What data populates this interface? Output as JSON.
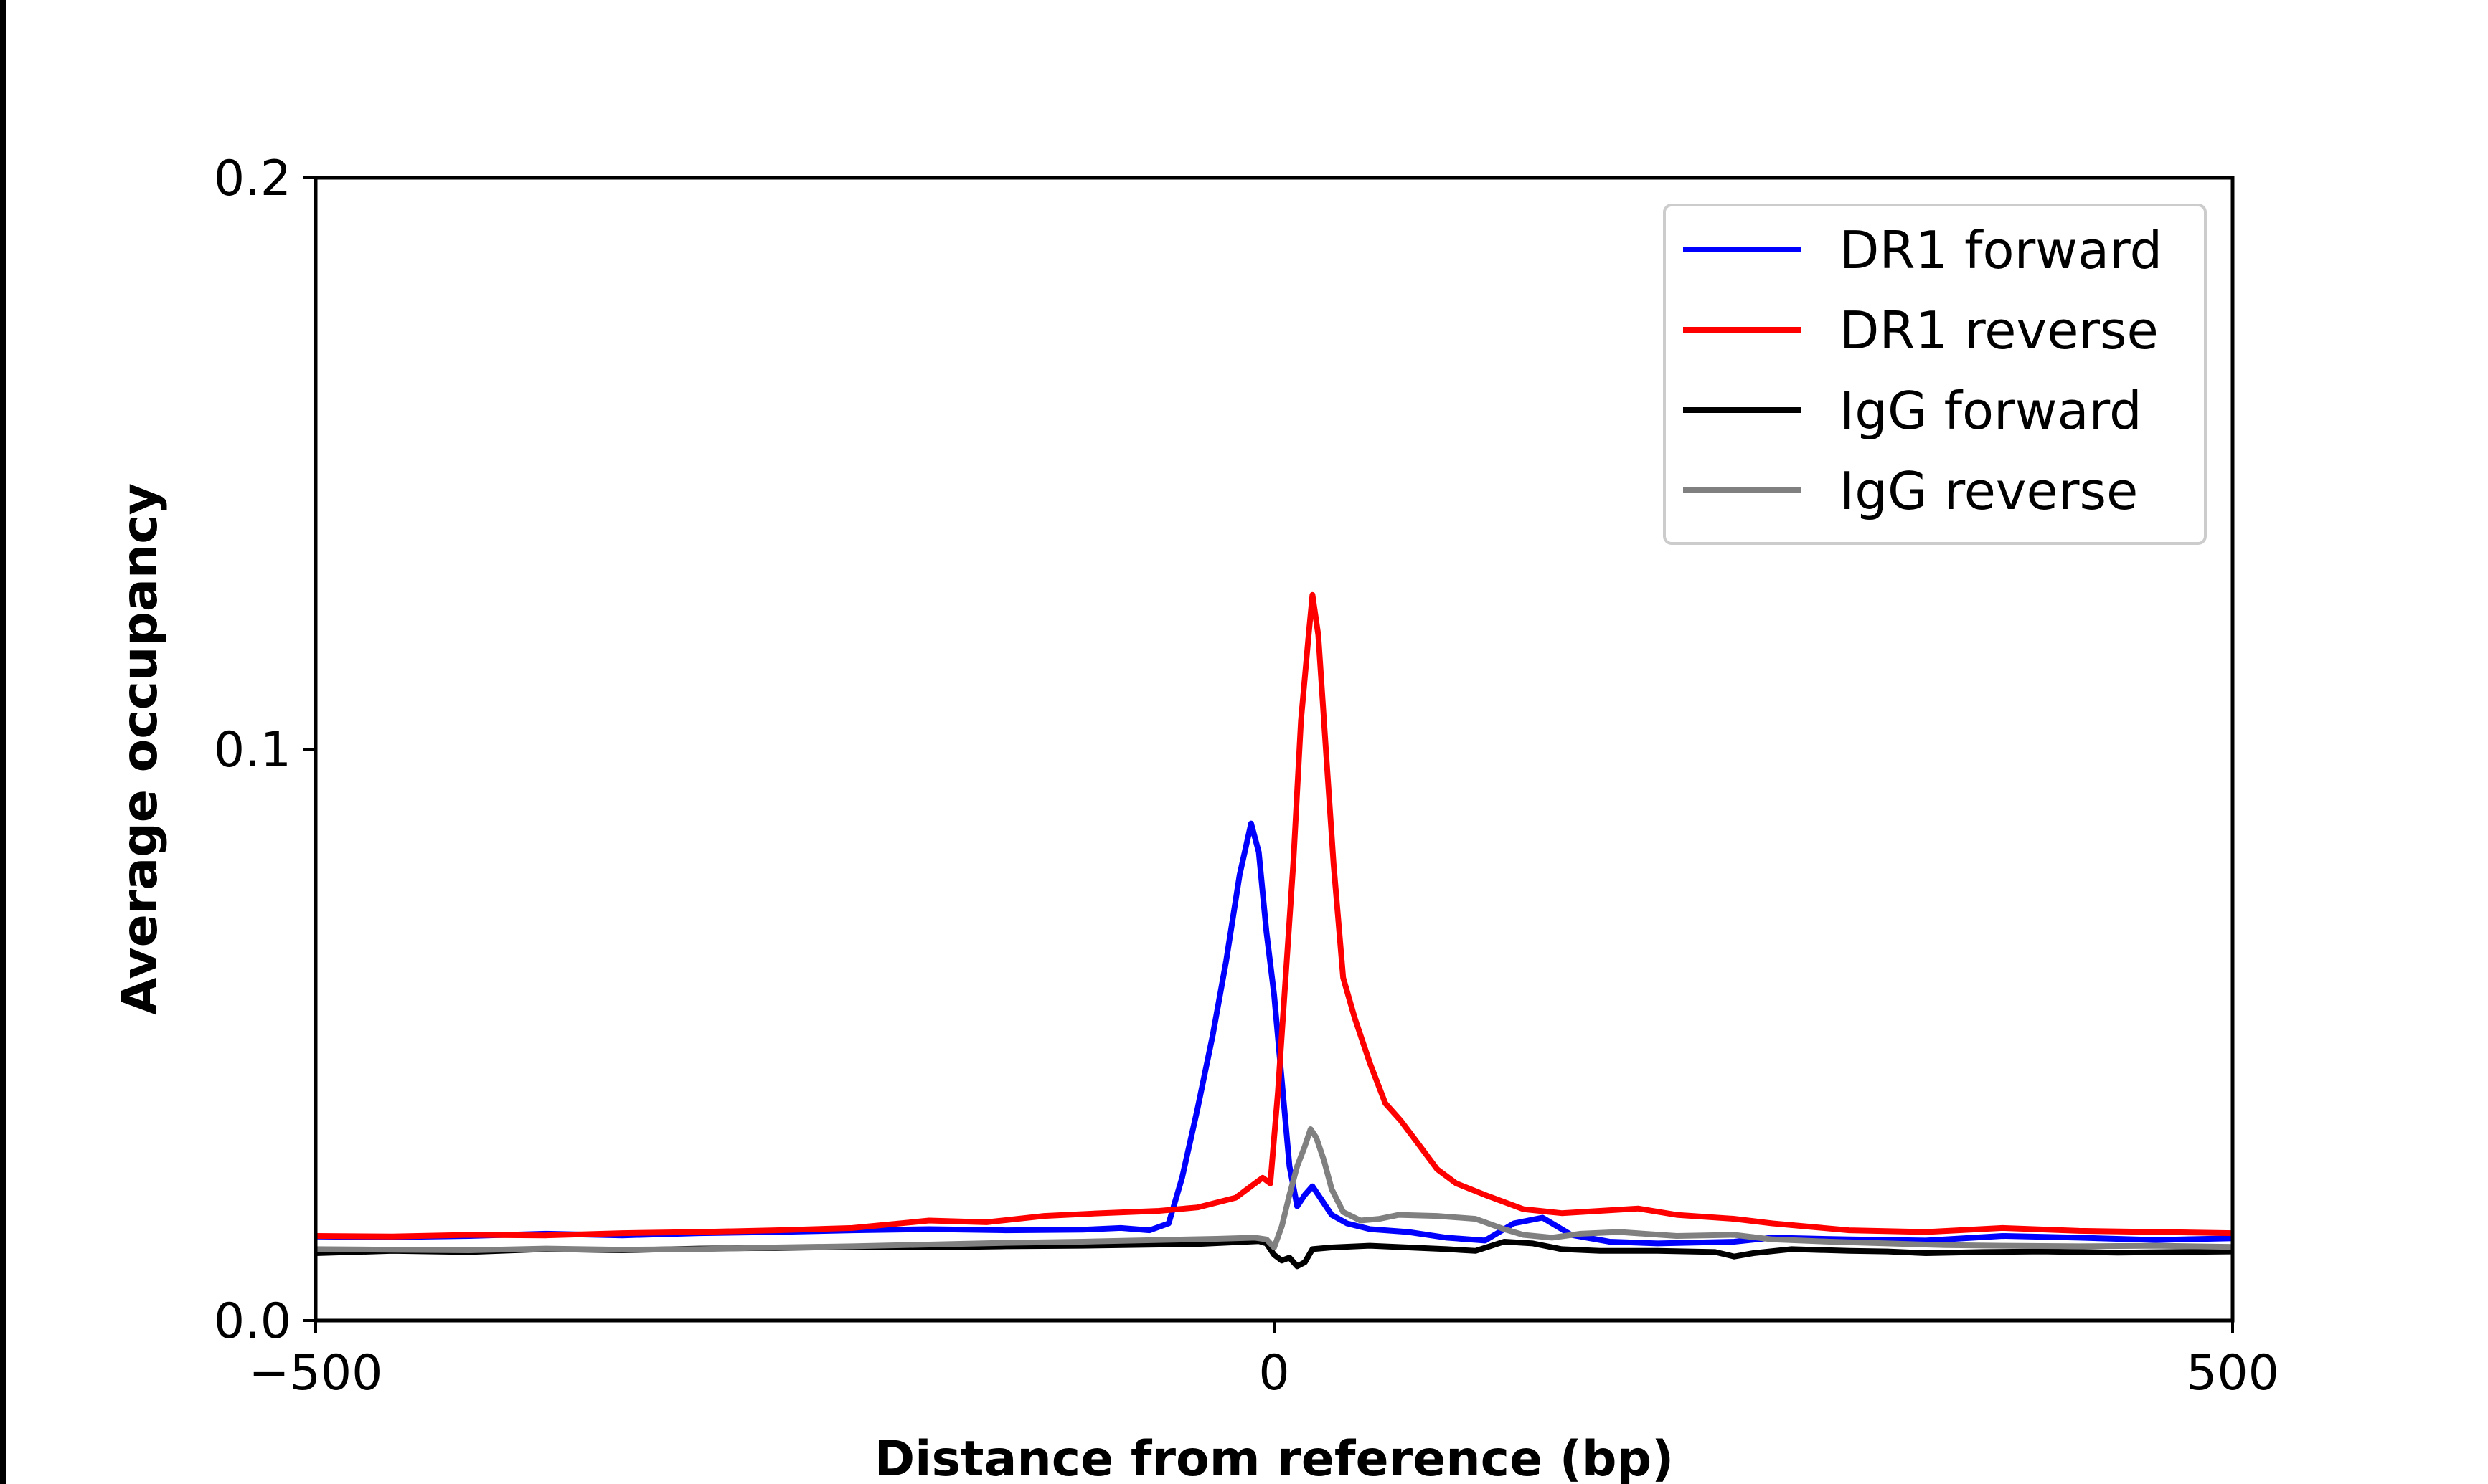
{
  "chart_data": {
    "type": "line",
    "title": "",
    "xlabel": "Distance from reference (bp)",
    "ylabel": "Average occupancy",
    "xlim": [
      -500,
      500
    ],
    "ylim": [
      0.0,
      0.2
    ],
    "grid": false,
    "legend_position": "top-right",
    "x_ticks": [
      {
        "value": -500,
        "label": "−500"
      },
      {
        "value": 0,
        "label": "0"
      },
      {
        "value": 500,
        "label": "500"
      }
    ],
    "y_ticks": [
      {
        "value": 0.0,
        "label": "0.0"
      },
      {
        "value": 0.1,
        "label": "0.1"
      },
      {
        "value": 0.2,
        "label": "0.2"
      }
    ],
    "series": [
      {
        "name": "DR1 forward",
        "color": "#0000ff",
        "points": [
          [
            -500,
            0.0147
          ],
          [
            -460,
            0.0146
          ],
          [
            -420,
            0.0148
          ],
          [
            -380,
            0.0152
          ],
          [
            -340,
            0.0149
          ],
          [
            -300,
            0.0153
          ],
          [
            -260,
            0.0155
          ],
          [
            -220,
            0.0158
          ],
          [
            -180,
            0.016
          ],
          [
            -140,
            0.0158
          ],
          [
            -100,
            0.0159
          ],
          [
            -80,
            0.0162
          ],
          [
            -65,
            0.0158
          ],
          [
            -55,
            0.017
          ],
          [
            -48,
            0.025
          ],
          [
            -40,
            0.037
          ],
          [
            -32,
            0.05
          ],
          [
            -25,
            0.063
          ],
          [
            -18,
            0.078
          ],
          [
            -12,
            0.087
          ],
          [
            -8,
            0.082
          ],
          [
            -4,
            0.068
          ],
          [
            0,
            0.057
          ],
          [
            4,
            0.042
          ],
          [
            8,
            0.027
          ],
          [
            12,
            0.02
          ],
          [
            16,
            0.022
          ],
          [
            20,
            0.0235
          ],
          [
            25,
            0.021
          ],
          [
            30,
            0.0185
          ],
          [
            38,
            0.017
          ],
          [
            50,
            0.016
          ],
          [
            70,
            0.0155
          ],
          [
            90,
            0.0145
          ],
          [
            110,
            0.014
          ],
          [
            125,
            0.017
          ],
          [
            140,
            0.018
          ],
          [
            155,
            0.015
          ],
          [
            175,
            0.0138
          ],
          [
            200,
            0.0135
          ],
          [
            240,
            0.0138
          ],
          [
            260,
            0.0145
          ],
          [
            300,
            0.0142
          ],
          [
            340,
            0.014
          ],
          [
            380,
            0.0148
          ],
          [
            420,
            0.0145
          ],
          [
            460,
            0.0141
          ],
          [
            500,
            0.0144
          ]
        ]
      },
      {
        "name": "DR1 reverse",
        "color": "#ff0000",
        "points": [
          [
            -500,
            0.0148
          ],
          [
            -460,
            0.0147
          ],
          [
            -420,
            0.015
          ],
          [
            -380,
            0.0149
          ],
          [
            -340,
            0.0153
          ],
          [
            -300,
            0.0155
          ],
          [
            -260,
            0.0158
          ],
          [
            -220,
            0.0162
          ],
          [
            -180,
            0.0175
          ],
          [
            -150,
            0.0172
          ],
          [
            -120,
            0.0183
          ],
          [
            -90,
            0.0188
          ],
          [
            -60,
            0.0192
          ],
          [
            -40,
            0.0198
          ],
          [
            -20,
            0.0215
          ],
          [
            -12,
            0.0235
          ],
          [
            -6,
            0.025
          ],
          [
            -2,
            0.024
          ],
          [
            2,
            0.04
          ],
          [
            6,
            0.06
          ],
          [
            10,
            0.08
          ],
          [
            14,
            0.105
          ],
          [
            18,
            0.12
          ],
          [
            20,
            0.127
          ],
          [
            23,
            0.12
          ],
          [
            27,
            0.1
          ],
          [
            31,
            0.08
          ],
          [
            36,
            0.06
          ],
          [
            42,
            0.053
          ],
          [
            50,
            0.045
          ],
          [
            58,
            0.038
          ],
          [
            66,
            0.035
          ],
          [
            75,
            0.031
          ],
          [
            85,
            0.0265
          ],
          [
            95,
            0.024
          ],
          [
            110,
            0.022
          ],
          [
            130,
            0.0195
          ],
          [
            150,
            0.0188
          ],
          [
            170,
            0.0192
          ],
          [
            190,
            0.0196
          ],
          [
            210,
            0.0185
          ],
          [
            240,
            0.0178
          ],
          [
            260,
            0.017
          ],
          [
            300,
            0.0158
          ],
          [
            340,
            0.0155
          ],
          [
            380,
            0.0162
          ],
          [
            420,
            0.0157
          ],
          [
            460,
            0.0155
          ],
          [
            500,
            0.0153
          ]
        ]
      },
      {
        "name": "IgG forward",
        "color": "#000000",
        "points": [
          [
            -500,
            0.0118
          ],
          [
            -460,
            0.0122
          ],
          [
            -420,
            0.012
          ],
          [
            -380,
            0.0125
          ],
          [
            -340,
            0.0123
          ],
          [
            -300,
            0.0126
          ],
          [
            -260,
            0.0127
          ],
          [
            -220,
            0.0129
          ],
          [
            -180,
            0.0128
          ],
          [
            -140,
            0.013
          ],
          [
            -100,
            0.0131
          ],
          [
            -60,
            0.0133
          ],
          [
            -40,
            0.0134
          ],
          [
            -20,
            0.0137
          ],
          [
            -8,
            0.0139
          ],
          [
            -4,
            0.0135
          ],
          [
            0,
            0.0115
          ],
          [
            4,
            0.0105
          ],
          [
            8,
            0.011
          ],
          [
            12,
            0.0095
          ],
          [
            16,
            0.0102
          ],
          [
            20,
            0.0125
          ],
          [
            30,
            0.0128
          ],
          [
            50,
            0.0131
          ],
          [
            70,
            0.0128
          ],
          [
            90,
            0.0125
          ],
          [
            105,
            0.0122
          ],
          [
            120,
            0.0138
          ],
          [
            135,
            0.0135
          ],
          [
            150,
            0.0125
          ],
          [
            170,
            0.0122
          ],
          [
            200,
            0.0122
          ],
          [
            230,
            0.012
          ],
          [
            240,
            0.0112
          ],
          [
            250,
            0.0118
          ],
          [
            270,
            0.0125
          ],
          [
            300,
            0.0122
          ],
          [
            320,
            0.0121
          ],
          [
            340,
            0.0118
          ],
          [
            370,
            0.012
          ],
          [
            400,
            0.0121
          ],
          [
            440,
            0.0119
          ],
          [
            470,
            0.012
          ],
          [
            500,
            0.0121
          ]
        ]
      },
      {
        "name": "IgG reverse",
        "color": "#808080",
        "points": [
          [
            -500,
            0.0125
          ],
          [
            -460,
            0.0124
          ],
          [
            -420,
            0.0123
          ],
          [
            -380,
            0.0126
          ],
          [
            -340,
            0.0124
          ],
          [
            -300,
            0.0125
          ],
          [
            -260,
            0.0128
          ],
          [
            -220,
            0.013
          ],
          [
            -180,
            0.0133
          ],
          [
            -140,
            0.0136
          ],
          [
            -100,
            0.0138
          ],
          [
            -60,
            0.0141
          ],
          [
            -30,
            0.0143
          ],
          [
            -10,
            0.0145
          ],
          [
            -4,
            0.0142
          ],
          [
            0,
            0.0128
          ],
          [
            4,
            0.0165
          ],
          [
            8,
            0.022
          ],
          [
            12,
            0.027
          ],
          [
            16,
            0.0305
          ],
          [
            19,
            0.0335
          ],
          [
            22,
            0.032
          ],
          [
            26,
            0.028
          ],
          [
            30,
            0.023
          ],
          [
            36,
            0.019
          ],
          [
            45,
            0.0175
          ],
          [
            55,
            0.0178
          ],
          [
            65,
            0.0185
          ],
          [
            85,
            0.0183
          ],
          [
            105,
            0.0178
          ],
          [
            120,
            0.016
          ],
          [
            130,
            0.015
          ],
          [
            145,
            0.0145
          ],
          [
            160,
            0.0152
          ],
          [
            180,
            0.0155
          ],
          [
            210,
            0.0148
          ],
          [
            240,
            0.015
          ],
          [
            260,
            0.0142
          ],
          [
            290,
            0.0138
          ],
          [
            320,
            0.0135
          ],
          [
            350,
            0.0132
          ],
          [
            380,
            0.0131
          ],
          [
            420,
            0.013
          ],
          [
            460,
            0.0131
          ],
          [
            500,
            0.0129
          ]
        ]
      }
    ]
  }
}
